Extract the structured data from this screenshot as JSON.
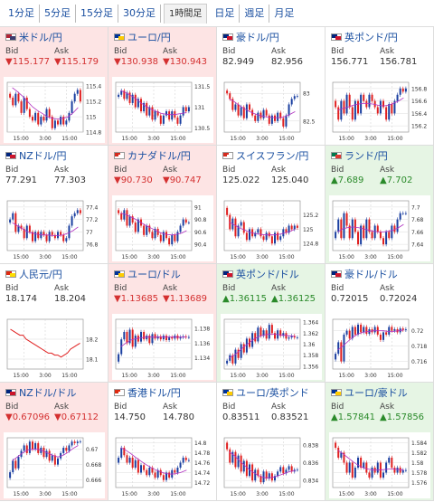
{
  "tabs": [
    {
      "label": "1分足",
      "active": false
    },
    {
      "label": "5分足",
      "active": false
    },
    {
      "label": "15分足",
      "active": false
    },
    {
      "label": "30分足",
      "active": false
    },
    {
      "label": "1時間足",
      "active": true
    },
    {
      "label": "日足",
      "active": false
    },
    {
      "label": "週足",
      "active": false
    },
    {
      "label": "月足",
      "active": false
    }
  ],
  "labels": {
    "bid": "Bid",
    "ask": "Ask"
  },
  "colors": {
    "up": "#2a8a2a",
    "down": "#d43030",
    "candle_up": "#1a3fa0",
    "candle_down": "#e02020",
    "ma": "#b030c0",
    "link": "#1a4fa0"
  },
  "quotes": [
    {
      "pair": "米ドル/円",
      "dir": "down",
      "flag": [
        "#b22234",
        "#3c3b6e"
      ],
      "bid": "▼115.177",
      "ask": "▼115.179",
      "chart_data": {
        "type": "candlestick",
        "yticks": [
          "115.4",
          "115.2",
          "115",
          "114.8"
        ],
        "ylim": [
          114.8,
          115.45
        ],
        "xticks": [
          "15:00",
          "3:00",
          "15:00"
        ],
        "closes": [
          115.25,
          115.15,
          115.3,
          115.2,
          115.05,
          115.25,
          115.1,
          115.0,
          114.95,
          115.05,
          114.9,
          115.0,
          114.95,
          115.1,
          115.0,
          114.85,
          114.95,
          114.9,
          115.0,
          114.9,
          114.95,
          115.05,
          115.2,
          115.3,
          115.35,
          115.2
        ],
        "ma": [
          115.38,
          115.33,
          115.27,
          115.2,
          115.13,
          115.08,
          115.04,
          115.0,
          114.98,
          114.97,
          114.98,
          115.0,
          115.05,
          115.12
        ]
      }
    },
    {
      "pair": "ユーロ/円",
      "dir": "down",
      "flag": [
        "#003399",
        "#ffcc00"
      ],
      "bid": "▼130.938",
      "ask": "▼130.943",
      "chart_data": {
        "type": "candlestick",
        "yticks": [
          "131.5",
          "131",
          "130.5"
        ],
        "ylim": [
          130.4,
          131.6
        ],
        "xticks": [
          "15:00",
          "3:00",
          "15:00"
        ],
        "closes": [
          131.3,
          131.4,
          131.2,
          131.35,
          131.1,
          131.3,
          131.0,
          131.2,
          130.9,
          131.1,
          130.8,
          131.0,
          130.7,
          130.9,
          130.8,
          130.6,
          130.8,
          130.9,
          130.7,
          130.9,
          130.75,
          130.6,
          130.8,
          131.0,
          130.9,
          131.0
        ],
        "ma": [
          131.4,
          131.35,
          131.28,
          131.2,
          131.1,
          131.02,
          130.95,
          130.9,
          130.85,
          130.83,
          130.82,
          130.83,
          130.85,
          130.87
        ]
      }
    },
    {
      "pair": "豪ドル/円",
      "dir": "flat",
      "flag": [
        "#00247d",
        "#cf142b"
      ],
      "bid": "82.949",
      "ask": "82.956",
      "chart_data": {
        "type": "candlestick",
        "yticks": [
          "83",
          "82.5"
        ],
        "ylim": [
          82.3,
          83.2
        ],
        "xticks": [
          "15:00",
          "3:00",
          "15:00"
        ],
        "closes": [
          83.0,
          82.9,
          82.7,
          82.8,
          82.6,
          82.75,
          82.55,
          82.8,
          82.7,
          82.6,
          82.5,
          82.65,
          82.55,
          82.7,
          82.6,
          82.45,
          82.6,
          82.5,
          82.65,
          82.55,
          82.4,
          82.6,
          82.8,
          82.9,
          82.95,
          82.95
        ],
        "ma": [
          82.9,
          82.85,
          82.78,
          82.72,
          82.67,
          82.63,
          82.6,
          82.58,
          82.57,
          82.56,
          82.56,
          82.58,
          82.62,
          82.67
        ]
      }
    },
    {
      "pair": "英ポンド/円",
      "dir": "flat",
      "flag": [
        "#00247d",
        "#cf142b"
      ],
      "bid": "156.771",
      "ask": "156.781",
      "chart_data": {
        "type": "candlestick",
        "yticks": [
          "156.8",
          "156.6",
          "156.4",
          "156.2"
        ],
        "ylim": [
          156.1,
          156.9
        ],
        "xticks": [
          "15:00",
          "3:00",
          "15:00"
        ],
        "closes": [
          156.5,
          156.3,
          156.6,
          156.4,
          156.7,
          156.5,
          156.3,
          156.6,
          156.4,
          156.7,
          156.6,
          156.5,
          156.7,
          156.6,
          156.5,
          156.4,
          156.6,
          156.5,
          156.3,
          156.55,
          156.4,
          156.6,
          156.7,
          156.8,
          156.75,
          156.8
        ],
        "ma": [
          156.45,
          156.48,
          156.5,
          156.53,
          156.55,
          156.56,
          156.56,
          156.55,
          156.53,
          156.52,
          156.53,
          156.56,
          156.6,
          156.65
        ]
      }
    },
    {
      "pair": "NZドル/円",
      "dir": "flat",
      "flag": [
        "#00247d",
        "#cc142b"
      ],
      "bid": "77.291",
      "ask": "77.303",
      "chart_data": {
        "type": "candlestick",
        "yticks": [
          "77.4",
          "77.2",
          "77",
          "76.8"
        ],
        "ylim": [
          76.7,
          77.5
        ],
        "xticks": [
          "15:00",
          "3:00",
          "15:00"
        ],
        "closes": [
          77.2,
          77.3,
          77.0,
          77.1,
          77.05,
          76.9,
          77.1,
          77.0,
          76.85,
          77.0,
          76.9,
          77.0,
          76.95,
          76.85,
          77.0,
          76.95,
          76.9,
          77.0,
          76.95,
          76.85,
          76.9,
          77.1,
          77.25,
          77.3,
          77.35,
          77.3
        ],
        "ma": [
          77.15,
          77.1,
          77.05,
          77.0,
          76.98,
          76.96,
          76.95,
          76.95,
          76.94,
          76.94,
          76.95,
          76.98,
          77.02,
          77.08
        ]
      }
    },
    {
      "pair": "カナダドル/円",
      "dir": "down",
      "flag": [
        "#d52b1e",
        "#ffffff"
      ],
      "bid": "▼90.730",
      "ask": "▼90.747",
      "chart_data": {
        "type": "candlestick",
        "yticks": [
          "91",
          "90.8",
          "90.6",
          "90.4"
        ],
        "ylim": [
          90.3,
          91.1
        ],
        "xticks": [
          "15:00",
          "3:00",
          "15:00"
        ],
        "closes": [
          90.9,
          90.8,
          90.95,
          90.7,
          90.85,
          90.75,
          90.6,
          90.8,
          90.7,
          90.55,
          90.7,
          90.6,
          90.5,
          90.65,
          90.55,
          90.45,
          90.6,
          90.5,
          90.4,
          90.55,
          90.45,
          90.6,
          90.7,
          90.8,
          90.75,
          90.75
        ],
        "ma": [
          90.9,
          90.88,
          90.84,
          90.8,
          90.75,
          90.7,
          90.66,
          90.62,
          90.58,
          90.56,
          90.55,
          90.56,
          90.58,
          90.62
        ]
      }
    },
    {
      "pair": "スイスフラン/円",
      "dir": "flat",
      "flag": [
        "#d52b1e",
        "#ffffff"
      ],
      "bid": "125.022",
      "ask": "125.040",
      "chart_data": {
        "type": "candlestick",
        "yticks": [
          "125.2",
          "125",
          "124.8"
        ],
        "ylim": [
          124.7,
          125.4
        ],
        "xticks": [
          "15:00",
          "3:00",
          "15:00"
        ],
        "closes": [
          125.2,
          125.0,
          125.15,
          124.9,
          125.05,
          125.1,
          124.95,
          124.85,
          125.0,
          124.9,
          124.95,
          125.0,
          124.9,
          124.85,
          124.95,
          124.9,
          124.8,
          124.95,
          124.85,
          124.9,
          125.0,
          124.95,
          125.05,
          125.0,
          125.05,
          125.02
        ],
        "ma": [
          125.1,
          125.06,
          125.02,
          124.99,
          124.96,
          124.94,
          124.93,
          124.92,
          124.92,
          124.92,
          124.93,
          124.95,
          124.97,
          125.0
        ]
      }
    },
    {
      "pair": "ランド/円",
      "dir": "up",
      "flag": [
        "#007a4d",
        "#de3831"
      ],
      "bid": "▲7.689",
      "ask": "▲7.702",
      "chart_data": {
        "type": "candlestick",
        "yticks": [
          "7.7",
          "7.68",
          "7.66",
          "7.64"
        ],
        "ylim": [
          7.63,
          7.71
        ],
        "xticks": [
          "15:00",
          "3:00",
          "15:00"
        ],
        "closes": [
          7.66,
          7.68,
          7.65,
          7.69,
          7.67,
          7.65,
          7.68,
          7.66,
          7.64,
          7.67,
          7.65,
          7.68,
          7.66,
          7.65,
          7.67,
          7.66,
          7.65,
          7.64,
          7.66,
          7.65,
          7.67,
          7.66,
          7.68,
          7.69,
          7.69,
          7.69
        ],
        "ma": [
          7.66,
          7.665,
          7.667,
          7.668,
          7.667,
          7.665,
          7.663,
          7.661,
          7.66,
          7.66,
          7.661,
          7.663,
          7.667,
          7.672
        ]
      }
    },
    {
      "pair": "人民元/円",
      "dir": "flat",
      "flag": [
        "#de2910",
        "#ffde00"
      ],
      "bid": "18.174",
      "ask": "18.204",
      "chart_data": {
        "type": "line",
        "yticks": [
          "18.2",
          "18.1"
        ],
        "ylim": [
          18.05,
          18.3
        ],
        "xticks": [
          "15:00",
          "3:00",
          "15:00"
        ],
        "closes": [
          18.25,
          18.24,
          18.23,
          18.22,
          18.22,
          18.2,
          18.19,
          18.18,
          18.17,
          18.16,
          18.15,
          18.14,
          18.13,
          18.13,
          18.12,
          18.12,
          18.11,
          18.12,
          18.13,
          18.15,
          18.16,
          18.17,
          18.18
        ],
        "ma": []
      }
    },
    {
      "pair": "ユーロ/ドル",
      "dir": "down",
      "flag": [
        "#003399",
        "#ffcc00"
      ],
      "bid": "▼1.13685",
      "ask": "▼1.13689",
      "chart_data": {
        "type": "candlestick",
        "yticks": [
          "1.138",
          "1.136",
          "1.134"
        ],
        "ylim": [
          1.1325,
          1.1392
        ],
        "xticks": [
          "15:00",
          "3:00",
          "15:00"
        ],
        "closes": [
          1.1345,
          1.1365,
          1.1375,
          1.136,
          1.1378,
          1.1355,
          1.137,
          1.1362,
          1.1375,
          1.1365,
          1.137,
          1.136,
          1.1372,
          1.1366,
          1.1369,
          1.1365,
          1.137,
          1.1364,
          1.1368,
          1.1366,
          1.137,
          1.1366,
          1.1368,
          1.1369,
          1.1368,
          1.1368
        ],
        "ma": [
          1.1355,
          1.136,
          1.1364,
          1.1366,
          1.1367,
          1.1368,
          1.1368,
          1.1368,
          1.1368,
          1.1368,
          1.1368,
          1.1368,
          1.1368,
          1.1368
        ]
      }
    },
    {
      "pair": "英ポンド/ドル",
      "dir": "up",
      "flag": [
        "#00247d",
        "#cf142b"
      ],
      "bid": "▲1.36115",
      "ask": "▲1.36125",
      "chart_data": {
        "type": "candlestick",
        "yticks": [
          "1.364",
          "1.362",
          "1.36",
          "1.358",
          "1.356"
        ],
        "ylim": [
          1.3555,
          1.3645
        ],
        "xticks": [
          "15:00",
          "3:00",
          "15:00"
        ],
        "closes": [
          1.357,
          1.358,
          1.3565,
          1.359,
          1.3575,
          1.36,
          1.3585,
          1.361,
          1.3595,
          1.362,
          1.3605,
          1.363,
          1.3615,
          1.3625,
          1.361,
          1.3635,
          1.362,
          1.361,
          1.3625,
          1.3615,
          1.362,
          1.361,
          1.3612,
          1.3615,
          1.3612,
          1.3612
        ],
        "ma": [
          1.3575,
          1.358,
          1.3588,
          1.3596,
          1.3603,
          1.361,
          1.3614,
          1.3617,
          1.3618,
          1.3618,
          1.3617,
          1.3616,
          1.3615,
          1.3614
        ]
      }
    },
    {
      "pair": "豪ドル/ドル",
      "dir": "flat",
      "flag": [
        "#00247d",
        "#cf142b"
      ],
      "bid": "0.72015",
      "ask": "0.72024",
      "chart_data": {
        "type": "candlestick",
        "yticks": [
          "0.72",
          "0.718",
          "0.716"
        ],
        "ylim": [
          0.715,
          0.7215
        ],
        "xticks": [
          "15:00",
          "3:00",
          "15:00"
        ],
        "closes": [
          0.717,
          0.7185,
          0.716,
          0.7195,
          0.72,
          0.719,
          0.7205,
          0.7195,
          0.7208,
          0.7198,
          0.7205,
          0.7196,
          0.7202,
          0.7198,
          0.7205,
          0.7195,
          0.7188,
          0.7198,
          0.7195,
          0.7205,
          0.72,
          0.7202,
          0.7198,
          0.7203,
          0.7201,
          0.7202
        ],
        "ma": [
          0.7175,
          0.718,
          0.7186,
          0.7192,
          0.7196,
          0.7198,
          0.7199,
          0.72,
          0.72,
          0.72,
          0.7199,
          0.7199,
          0.72,
          0.7201
        ]
      }
    },
    {
      "pair": "NZドル/ドル",
      "dir": "down",
      "flag": [
        "#00247d",
        "#cc142b"
      ],
      "bid": "▼0.67096",
      "ask": "▼0.67112",
      "chart_data": {
        "type": "candlestick",
        "yticks": [
          "0.67",
          "0.668",
          "0.666"
        ],
        "ylim": [
          0.665,
          0.6715
        ],
        "xticks": [
          "15:00",
          "3:00",
          "15:00"
        ],
        "closes": [
          0.667,
          0.6685,
          0.6675,
          0.669,
          0.6698,
          0.6705,
          0.6695,
          0.671,
          0.67,
          0.6708,
          0.6695,
          0.6702,
          0.669,
          0.6698,
          0.6685,
          0.6692,
          0.668,
          0.6688,
          0.6695,
          0.6702,
          0.6698,
          0.6705,
          0.671,
          0.6708,
          0.671,
          0.671
        ],
        "ma": [
          0.6685,
          0.669,
          0.6695,
          0.6699,
          0.67,
          0.67,
          0.6698,
          0.6695,
          0.6692,
          0.669,
          0.6692,
          0.6696,
          0.6701,
          0.6705
        ]
      }
    },
    {
      "pair": "香港ドル/円",
      "dir": "flat",
      "flag": [
        "#de2910",
        "#ffffff"
      ],
      "bid": "14.750",
      "ask": "14.780",
      "chart_data": {
        "type": "candlestick",
        "yticks": [
          "14.8",
          "14.78",
          "14.76",
          "14.74",
          "14.72"
        ],
        "ylim": [
          14.71,
          14.81
        ],
        "xticks": [
          "15:00",
          "3:00",
          "15:00"
        ],
        "closes": [
          14.77,
          14.79,
          14.775,
          14.76,
          14.77,
          14.75,
          14.765,
          14.74,
          14.755,
          14.745,
          14.735,
          14.75,
          14.74,
          14.73,
          14.745,
          14.735,
          14.725,
          14.74,
          14.73,
          14.745,
          14.74,
          14.75,
          14.76,
          14.77,
          14.765,
          14.765
        ],
        "ma": [
          14.79,
          14.785,
          14.778,
          14.77,
          14.763,
          14.756,
          14.75,
          14.745,
          14.741,
          14.738,
          14.737,
          14.738,
          14.741,
          14.745
        ]
      }
    },
    {
      "pair": "ユーロ/英ポンド",
      "dir": "flat",
      "flag": [
        "#003399",
        "#ffcc00"
      ],
      "bid": "0.83511",
      "ask": "0.83521",
      "chart_data": {
        "type": "candlestick",
        "yticks": [
          "0.838",
          "0.836",
          "0.834"
        ],
        "ylim": [
          0.8332,
          0.8388
        ],
        "xticks": [
          "15:00",
          "3:00",
          "15:00"
        ],
        "closes": [
          0.8375,
          0.836,
          0.8372,
          0.8355,
          0.8368,
          0.835,
          0.8362,
          0.8345,
          0.8358,
          0.834,
          0.8352,
          0.8345,
          0.8338,
          0.835,
          0.8342,
          0.8348,
          0.834,
          0.8345,
          0.835,
          0.8355,
          0.8348,
          0.8352,
          0.8356,
          0.835,
          0.8352,
          0.8352
        ],
        "ma": [
          0.8372,
          0.8368,
          0.8362,
          0.8357,
          0.8352,
          0.8348,
          0.8345,
          0.8343,
          0.8343,
          0.8344,
          0.8346,
          0.8348,
          0.835,
          0.8351
        ]
      }
    },
    {
      "pair": "ユーロ/豪ドル",
      "dir": "up",
      "flag": [
        "#003399",
        "#ffcc00"
      ],
      "bid": "▲1.57841",
      "ask": "▲1.57856",
      "chart_data": {
        "type": "candlestick",
        "yticks": [
          "1.584",
          "1.582",
          "1.58",
          "1.578",
          "1.576"
        ],
        "ylim": [
          1.575,
          1.585
        ],
        "xticks": [
          "15:00",
          "3:00",
          "15:00"
        ],
        "closes": [
          1.583,
          1.581,
          1.582,
          1.58,
          1.578,
          1.58,
          1.577,
          1.579,
          1.581,
          1.579,
          1.58,
          1.578,
          1.577,
          1.579,
          1.578,
          1.58,
          1.577,
          1.578,
          1.58,
          1.581,
          1.579,
          1.578,
          1.579,
          1.578,
          1.5785,
          1.5785
        ],
        "ma": [
          1.5825,
          1.5818,
          1.581,
          1.5802,
          1.5795,
          1.579,
          1.5787,
          1.5785,
          1.5785,
          1.5786,
          1.5787,
          1.5787,
          1.5786,
          1.5785
        ]
      }
    }
  ]
}
